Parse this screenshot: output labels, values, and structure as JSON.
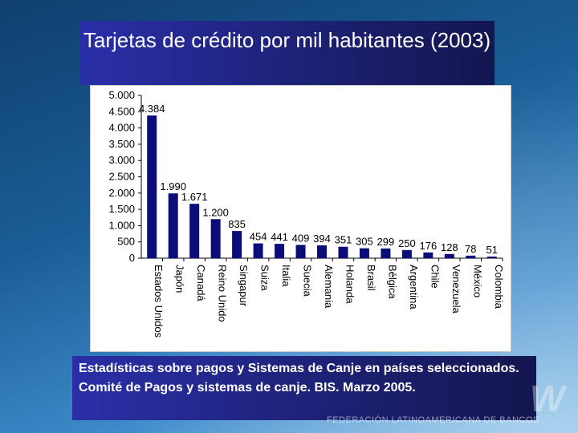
{
  "title": "Tarjetas de crédito por mil habitantes (2003)",
  "caption": "Estadísticas sobre pagos y Sistemas de Canje en países seleccionados. Comité de Pagos y sistemas de canje. BIS. Marzo 2005.",
  "footer": {
    "org": "FEDERACIÓN LATINOAMERICANA DE BANCOS"
  },
  "chart_data": {
    "type": "bar",
    "title": "",
    "xlabel": "",
    "ylabel": "",
    "ylim": [
      0,
      5000
    ],
    "yticks": [
      0,
      500,
      1000,
      1500,
      2000,
      2500,
      3000,
      3500,
      4000,
      4500,
      5000
    ],
    "ytick_labels": [
      "0",
      "500",
      "1.000",
      "1.500",
      "2.000",
      "2.500",
      "3.000",
      "3.500",
      "4.000",
      "4.500",
      "5.000"
    ],
    "grid": false,
    "bar_color": "#0d0d7a",
    "categories": [
      "Estados Unidos",
      "Japón",
      "Canadá",
      "Reino Unido",
      "Singapur",
      "Suiza",
      "Italia",
      "Suecia",
      "Alemania",
      "Holanda",
      "Brasil",
      "Bélgica",
      "Argentina",
      "Chile",
      "Venezuela",
      "México",
      "Colombia"
    ],
    "values": [
      4384,
      1990,
      1671,
      1200,
      835,
      454,
      441,
      409,
      394,
      351,
      305,
      299,
      250,
      176,
      128,
      78,
      51
    ],
    "data_labels": [
      "4.384",
      "1.990",
      "1.671",
      "1.200",
      "835",
      "454",
      "441",
      "409",
      "394",
      "351",
      "305",
      "299",
      "250",
      "176",
      "128",
      "78",
      "51"
    ]
  }
}
